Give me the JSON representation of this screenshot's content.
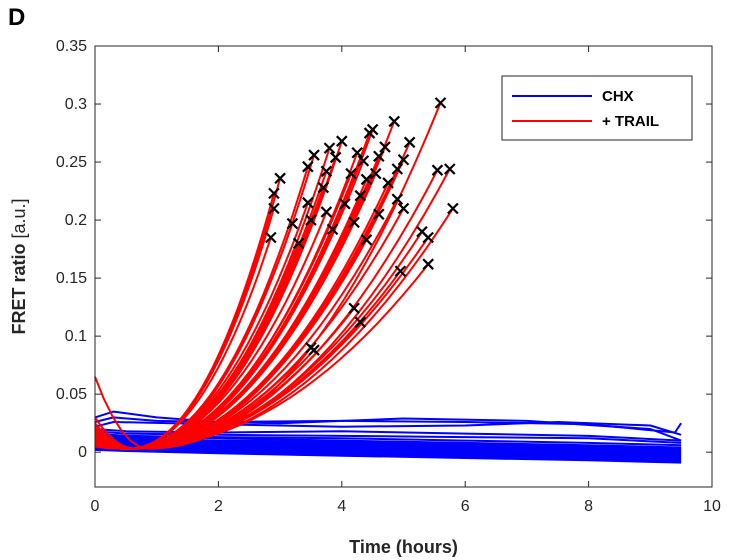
{
  "panel_label": "D",
  "colors": {
    "chx": "#0000ff",
    "trail": "#ff0000",
    "marker": "#000000",
    "axis": "#262626"
  },
  "chart_data": {
    "type": "line",
    "title": "",
    "xlabel": "Time (hours)",
    "ylabel_bold": "FRET ratio",
    "ylabel_unit": " [a.u.]",
    "xlim": [
      0,
      10
    ],
    "ylim": [
      -0.03,
      0.35
    ],
    "xticks": [
      0,
      2,
      4,
      6,
      8,
      10
    ],
    "xtick_labels": [
      "0",
      "2",
      "4",
      "6",
      "8",
      "10"
    ],
    "yticks": [
      0,
      0.05,
      0.1,
      0.15,
      0.2,
      0.25,
      0.3,
      0.35
    ],
    "ytick_labels": [
      "0",
      "0.05",
      "0.1",
      "0.15",
      "0.2",
      "0.25",
      "0.3",
      "0.35"
    ],
    "grid": false,
    "legend_position": "top-right",
    "series": [
      {
        "name": "CHX",
        "color": "#0000ff",
        "curves": [
          [
            [
              0,
              0.03
            ],
            [
              0.3,
              0.035
            ],
            [
              1,
              0.03
            ],
            [
              2,
              0.026
            ],
            [
              4,
              0.027
            ],
            [
              6,
              0.026
            ],
            [
              8,
              0.024
            ],
            [
              9.4,
              0.017
            ],
            [
              9.5,
              0.025
            ]
          ],
          [
            [
              0,
              0.026
            ],
            [
              0.3,
              0.03
            ],
            [
              1,
              0.027
            ],
            [
              3,
              0.025
            ],
            [
              5,
              0.029
            ],
            [
              7,
              0.027
            ],
            [
              9,
              0.02
            ],
            [
              9.5,
              0.01
            ]
          ],
          [
            [
              0,
              0.022
            ],
            [
              0.3,
              0.026
            ],
            [
              2,
              0.024
            ],
            [
              4,
              0.022
            ],
            [
              6,
              0.023
            ],
            [
              7.5,
              0.026
            ],
            [
              9,
              0.023
            ],
            [
              9.5,
              0.015
            ]
          ],
          [
            [
              0,
              0.02
            ],
            [
              0.5,
              0.018
            ],
            [
              2,
              0.017
            ],
            [
              4,
              0.018
            ],
            [
              6,
              0.016
            ],
            [
              8,
              0.014
            ],
            [
              9.5,
              0.01
            ]
          ],
          [
            [
              0,
              0.018
            ],
            [
              0.5,
              0.016
            ],
            [
              2,
              0.015
            ],
            [
              4,
              0.014
            ],
            [
              6,
              0.013
            ],
            [
              8,
              0.012
            ],
            [
              9.5,
              0.008
            ]
          ],
          [
            [
              0,
              0.016
            ],
            [
              0.5,
              0.014
            ],
            [
              2,
              0.013
            ],
            [
              4,
              0.012
            ],
            [
              6,
              0.01
            ],
            [
              8,
              0.008
            ],
            [
              9.5,
              0.006
            ]
          ],
          [
            [
              0,
              0.015
            ],
            [
              0.5,
              0.013
            ],
            [
              2,
              0.012
            ],
            [
              4,
              0.01
            ],
            [
              6,
              0.008
            ],
            [
              8,
              0.006
            ],
            [
              9.5,
              0.004
            ]
          ],
          [
            [
              0,
              0.014
            ],
            [
              0.5,
              0.012
            ],
            [
              2,
              0.01
            ],
            [
              4,
              0.009
            ],
            [
              6,
              0.007
            ],
            [
              8,
              0.005
            ],
            [
              9.5,
              0.003
            ]
          ],
          [
            [
              0,
              0.013
            ],
            [
              0.5,
              0.011
            ],
            [
              2,
              0.009
            ],
            [
              4,
              0.008
            ],
            [
              6,
              0.006
            ],
            [
              8,
              0.004
            ],
            [
              9.5,
              0.002
            ]
          ],
          [
            [
              0,
              0.012
            ],
            [
              0.5,
              0.01
            ],
            [
              2,
              0.008
            ],
            [
              4,
              0.007
            ],
            [
              6,
              0.005
            ],
            [
              8,
              0.003
            ],
            [
              9.5,
              0.001
            ]
          ],
          [
            [
              0,
              0.011
            ],
            [
              0.5,
              0.009
            ],
            [
              2,
              0.008
            ],
            [
              4,
              0.006
            ],
            [
              6,
              0.004
            ],
            [
              8,
              0.002
            ],
            [
              9.5,
              0.0
            ]
          ],
          [
            [
              0,
              0.01
            ],
            [
              0.5,
              0.009
            ],
            [
              2,
              0.007
            ],
            [
              4,
              0.005
            ],
            [
              6,
              0.003
            ],
            [
              8,
              0.001
            ],
            [
              9.5,
              -0.001
            ]
          ],
          [
            [
              0,
              0.009
            ],
            [
              0.5,
              0.008
            ],
            [
              2,
              0.006
            ],
            [
              4,
              0.004
            ],
            [
              6,
              0.002
            ],
            [
              8,
              0.0
            ],
            [
              9.5,
              -0.002
            ]
          ],
          [
            [
              0,
              0.008
            ],
            [
              0.5,
              0.007
            ],
            [
              2,
              0.005
            ],
            [
              4,
              0.003
            ],
            [
              6,
              0.001
            ],
            [
              8,
              -0.001
            ],
            [
              9.5,
              -0.003
            ]
          ],
          [
            [
              0,
              0.007
            ],
            [
              0.5,
              0.006
            ],
            [
              2,
              0.004
            ],
            [
              4,
              0.002
            ],
            [
              6,
              0.0
            ],
            [
              8,
              -0.002
            ],
            [
              9.5,
              -0.004
            ]
          ],
          [
            [
              0,
              0.006
            ],
            [
              0.5,
              0.005
            ],
            [
              2,
              0.003
            ],
            [
              4,
              0.001
            ],
            [
              6,
              -0.001
            ],
            [
              8,
              -0.003
            ],
            [
              9.5,
              -0.005
            ]
          ],
          [
            [
              0,
              0.005
            ],
            [
              0.5,
              0.004
            ],
            [
              2,
              0.002
            ],
            [
              4,
              0.0
            ],
            [
              6,
              -0.002
            ],
            [
              8,
              -0.004
            ],
            [
              9.5,
              -0.006
            ]
          ],
          [
            [
              0,
              0.004
            ],
            [
              0.5,
              0.003
            ],
            [
              2,
              0.001
            ],
            [
              4,
              -0.001
            ],
            [
              6,
              -0.003
            ],
            [
              8,
              -0.005
            ],
            [
              9.5,
              -0.007
            ]
          ],
          [
            [
              0,
              0.003
            ],
            [
              0.5,
              0.002
            ],
            [
              2,
              0.0
            ],
            [
              4,
              -0.002
            ],
            [
              6,
              -0.004
            ],
            [
              8,
              -0.006
            ],
            [
              9.5,
              -0.008
            ]
          ],
          [
            [
              0,
              0.002
            ],
            [
              0.5,
              0.001
            ],
            [
              2,
              -0.001
            ],
            [
              4,
              -0.003
            ],
            [
              6,
              -0.005
            ],
            [
              8,
              -0.007
            ],
            [
              9.5,
              -0.009
            ]
          ]
        ]
      },
      {
        "name": "+ TRAIL",
        "color": "#ff0000",
        "curves": [
          {
            "s": 0.065,
            "e": [
              5.6,
              0.301
            ]
          },
          {
            "s": 0.03,
            "e": [
              5.75,
              0.244
            ]
          },
          {
            "s": 0.025,
            "e": [
              5.55,
              0.243
            ]
          },
          {
            "s": 0.02,
            "e": [
              5.8,
              0.21
            ]
          },
          {
            "s": 0.022,
            "e": [
              5.1,
              0.267
            ]
          },
          {
            "s": 0.018,
            "e": [
              4.85,
              0.285
            ]
          },
          {
            "s": 0.02,
            "e": [
              4.5,
              0.278
            ]
          },
          {
            "s": 0.015,
            "e": [
              4.45,
              0.275
            ]
          },
          {
            "s": 0.02,
            "e": [
              4.0,
              0.268
            ]
          },
          {
            "s": 0.018,
            "e": [
              3.8,
              0.262
            ]
          },
          {
            "s": 0.016,
            "e": [
              4.25,
              0.258
            ]
          },
          {
            "s": 0.015,
            "e": [
              4.7,
              0.263
            ]
          },
          {
            "s": 0.014,
            "e": [
              5.0,
              0.252
            ]
          },
          {
            "s": 0.018,
            "e": [
              3.55,
              0.256
            ]
          },
          {
            "s": 0.015,
            "e": [
              4.6,
              0.255
            ]
          },
          {
            "s": 0.013,
            "e": [
              3.9,
              0.254
            ]
          },
          {
            "s": 0.014,
            "e": [
              4.35,
              0.251
            ]
          },
          {
            "s": 0.012,
            "e": [
              4.9,
              0.244
            ]
          },
          {
            "s": 0.015,
            "e": [
              3.45,
              0.246
            ]
          },
          {
            "s": 0.012,
            "e": [
              4.55,
              0.24
            ]
          },
          {
            "s": 0.013,
            "e": [
              3.75,
              0.242
            ]
          },
          {
            "s": 0.01,
            "e": [
              4.15,
              0.24
            ]
          },
          {
            "s": 0.012,
            "e": [
              3.0,
              0.236
            ]
          },
          {
            "s": 0.011,
            "e": [
              4.4,
              0.235
            ]
          },
          {
            "s": 0.01,
            "e": [
              3.7,
              0.228
            ]
          },
          {
            "s": 0.01,
            "e": [
              4.75,
              0.232
            ]
          },
          {
            "s": 0.011,
            "e": [
              2.9,
              0.223
            ]
          },
          {
            "s": 0.01,
            "e": [
              4.3,
              0.221
            ]
          },
          {
            "s": 0.009,
            "e": [
              4.9,
              0.218
            ]
          },
          {
            "s": 0.01,
            "e": [
              3.45,
              0.215
            ]
          },
          {
            "s": 0.009,
            "e": [
              4.05,
              0.214
            ]
          },
          {
            "s": 0.008,
            "e": [
              5.0,
              0.21
            ]
          },
          {
            "s": 0.01,
            "e": [
              2.9,
              0.21
            ]
          },
          {
            "s": 0.009,
            "e": [
              3.75,
              0.207
            ]
          },
          {
            "s": 0.008,
            "e": [
              4.6,
              0.205
            ]
          },
          {
            "s": 0.01,
            "e": [
              3.5,
              0.2
            ]
          },
          {
            "s": 0.008,
            "e": [
              4.2,
              0.198
            ]
          },
          {
            "s": 0.009,
            "e": [
              3.2,
              0.197
            ]
          },
          {
            "s": 0.007,
            "e": [
              5.3,
              0.19
            ]
          },
          {
            "s": 0.008,
            "e": [
              3.85,
              0.192
            ]
          },
          {
            "s": 0.008,
            "e": [
              2.85,
              0.185
            ]
          },
          {
            "s": 0.007,
            "e": [
              5.4,
              0.185
            ]
          },
          {
            "s": 0.007,
            "e": [
              4.4,
              0.183
            ]
          },
          {
            "s": 0.008,
            "e": [
              3.3,
              0.18
            ]
          },
          {
            "s": 0.006,
            "e": [
              4.95,
              0.156
            ]
          },
          {
            "s": 0.006,
            "e": [
              5.4,
              0.162
            ]
          },
          {
            "s": 0.006,
            "e": [
              4.2,
              0.124
            ]
          },
          {
            "s": 0.006,
            "e": [
              4.3,
              0.112
            ]
          },
          {
            "s": 0.005,
            "e": [
              3.5,
              0.09
            ]
          },
          {
            "s": 0.005,
            "e": [
              3.55,
              0.088
            ]
          }
        ]
      }
    ]
  }
}
